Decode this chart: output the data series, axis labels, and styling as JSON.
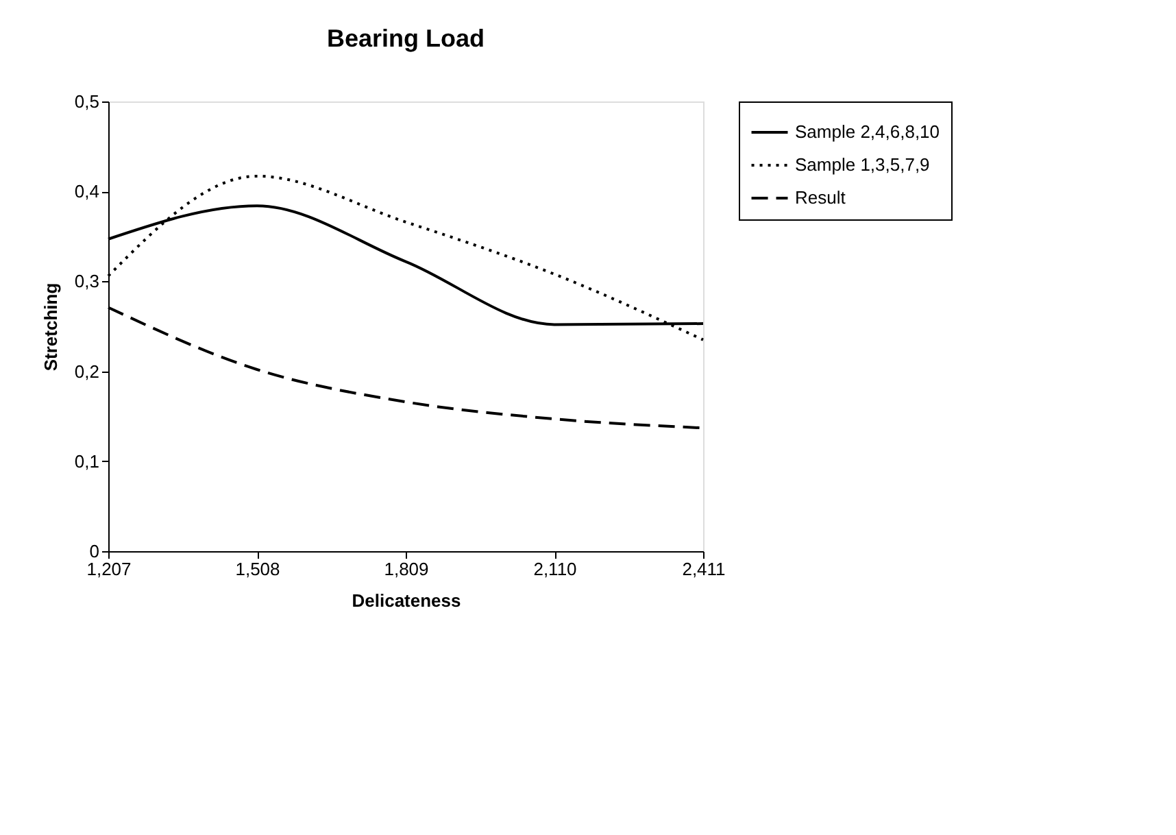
{
  "chart_data": {
    "type": "line",
    "title": "Bearing Load",
    "xlabel": "Delicateness",
    "ylabel": "Stretching",
    "categories": [
      "1,207",
      "1,508",
      "1,809",
      "2,110",
      "2,411"
    ],
    "ylim": [
      0,
      0.5
    ],
    "yticks": [
      {
        "value": 0,
        "label": "0"
      },
      {
        "value": 0.1,
        "label": "0,1"
      },
      {
        "value": 0.2,
        "label": "0,2"
      },
      {
        "value": 0.3,
        "label": "0,3"
      },
      {
        "value": 0.4,
        "label": "0,4"
      },
      {
        "value": 0.5,
        "label": "0,5"
      }
    ],
    "grid": false,
    "legend": "right",
    "marker": "none",
    "series": [
      {
        "name": "Sample 2,4,6,8,10",
        "color": "#000000",
        "line_style": "solid",
        "values": [
          0.347,
          0.384,
          0.322,
          0.252,
          0.253
        ]
      },
      {
        "name": "Sample 1,3,5,7,9",
        "color": "#000000",
        "line_style": "dotted",
        "values": [
          0.306,
          0.417,
          0.366,
          0.308,
          0.235
        ]
      },
      {
        "name": "Result",
        "color": "#000000",
        "line_style": "dashed",
        "values": [
          0.271,
          0.202,
          0.166,
          0.147,
          0.137
        ]
      }
    ]
  }
}
